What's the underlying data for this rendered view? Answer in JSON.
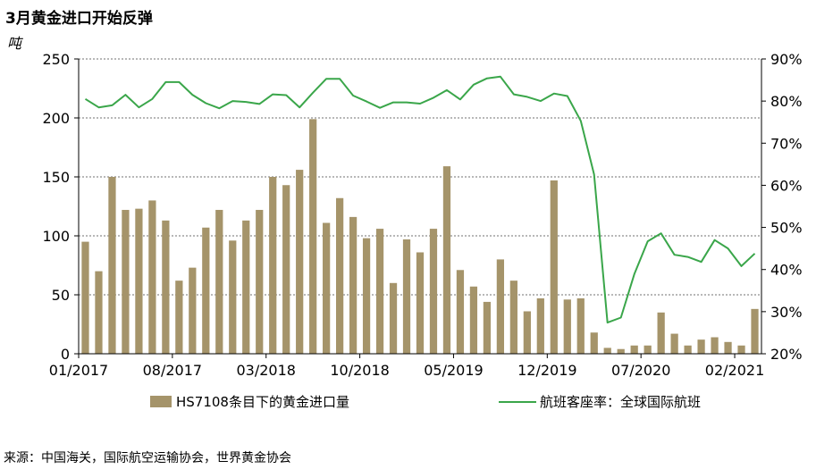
{
  "title": "3月黄金进口开始反弹",
  "source": "来源：中国海关，国际航空运输协会，世界黄金协会",
  "colors": {
    "bar": "#a5946a",
    "line": "#3aa64a",
    "grid": "#444444"
  },
  "chart_data": {
    "type": "bar",
    "left_axis": {
      "unit_label": "吨",
      "ylim": [
        0,
        250
      ],
      "ticks": [
        "0",
        "50",
        "100",
        "150",
        "200",
        "250"
      ],
      "tick_values": [
        0,
        50,
        100,
        150,
        200,
        250
      ]
    },
    "right_axis": {
      "ylim": [
        20,
        90
      ],
      "ticks": [
        "20%",
        "30%",
        "40%",
        "50%",
        "60%",
        "70%",
        "80%",
        "90%"
      ],
      "tick_values": [
        20,
        30,
        40,
        50,
        60,
        70,
        80,
        90
      ]
    },
    "x_ticks": [
      {
        "label": "01/2017",
        "index": 0
      },
      {
        "label": "08/2017",
        "index": 7
      },
      {
        "label": "03/2018",
        "index": 14
      },
      {
        "label": "10/2018",
        "index": 21
      },
      {
        "label": "05/2019",
        "index": 28
      },
      {
        "label": "12/2019",
        "index": 35
      },
      {
        "label": "07/2020",
        "index": 42
      },
      {
        "label": "02/2021",
        "index": 49
      }
    ],
    "grid": true,
    "legend_position": "bottom",
    "series": [
      {
        "name": "HS7108条目下的黄金进口量",
        "type": "bar",
        "axis": "left",
        "values": [
          95,
          70,
          150,
          122,
          123,
          130,
          113,
          62,
          73,
          107,
          122,
          96,
          113,
          122,
          150,
          143,
          156,
          199,
          111,
          132,
          116,
          98,
          106,
          60,
          97,
          86,
          106,
          159,
          71,
          57,
          44,
          80,
          62,
          36,
          47,
          147,
          46,
          47,
          18,
          5,
          4,
          7,
          7,
          35,
          17,
          7,
          12,
          14,
          10,
          7,
          38
        ]
      },
      {
        "name": "航班客座率：全球国际航班",
        "type": "line",
        "axis": "right",
        "values": [
          80.5,
          78.5,
          79,
          81.5,
          78.5,
          80.5,
          84.5,
          84.5,
          81.5,
          79.5,
          78.3,
          80,
          79.8,
          79.3,
          81.6,
          81.4,
          78.5,
          82,
          85.3,
          85.3,
          81.3,
          79.9,
          78.4,
          79.7,
          79.7,
          79.4,
          80.8,
          82.6,
          80.4,
          83.9,
          85.4,
          85.8,
          81.6,
          81,
          80,
          81.8,
          81.2,
          75.3,
          62.6,
          27.4,
          28.6,
          38.9,
          46.7,
          48.6,
          43.5,
          43,
          41.8,
          47,
          45,
          40.8,
          43.8
        ]
      }
    ]
  }
}
